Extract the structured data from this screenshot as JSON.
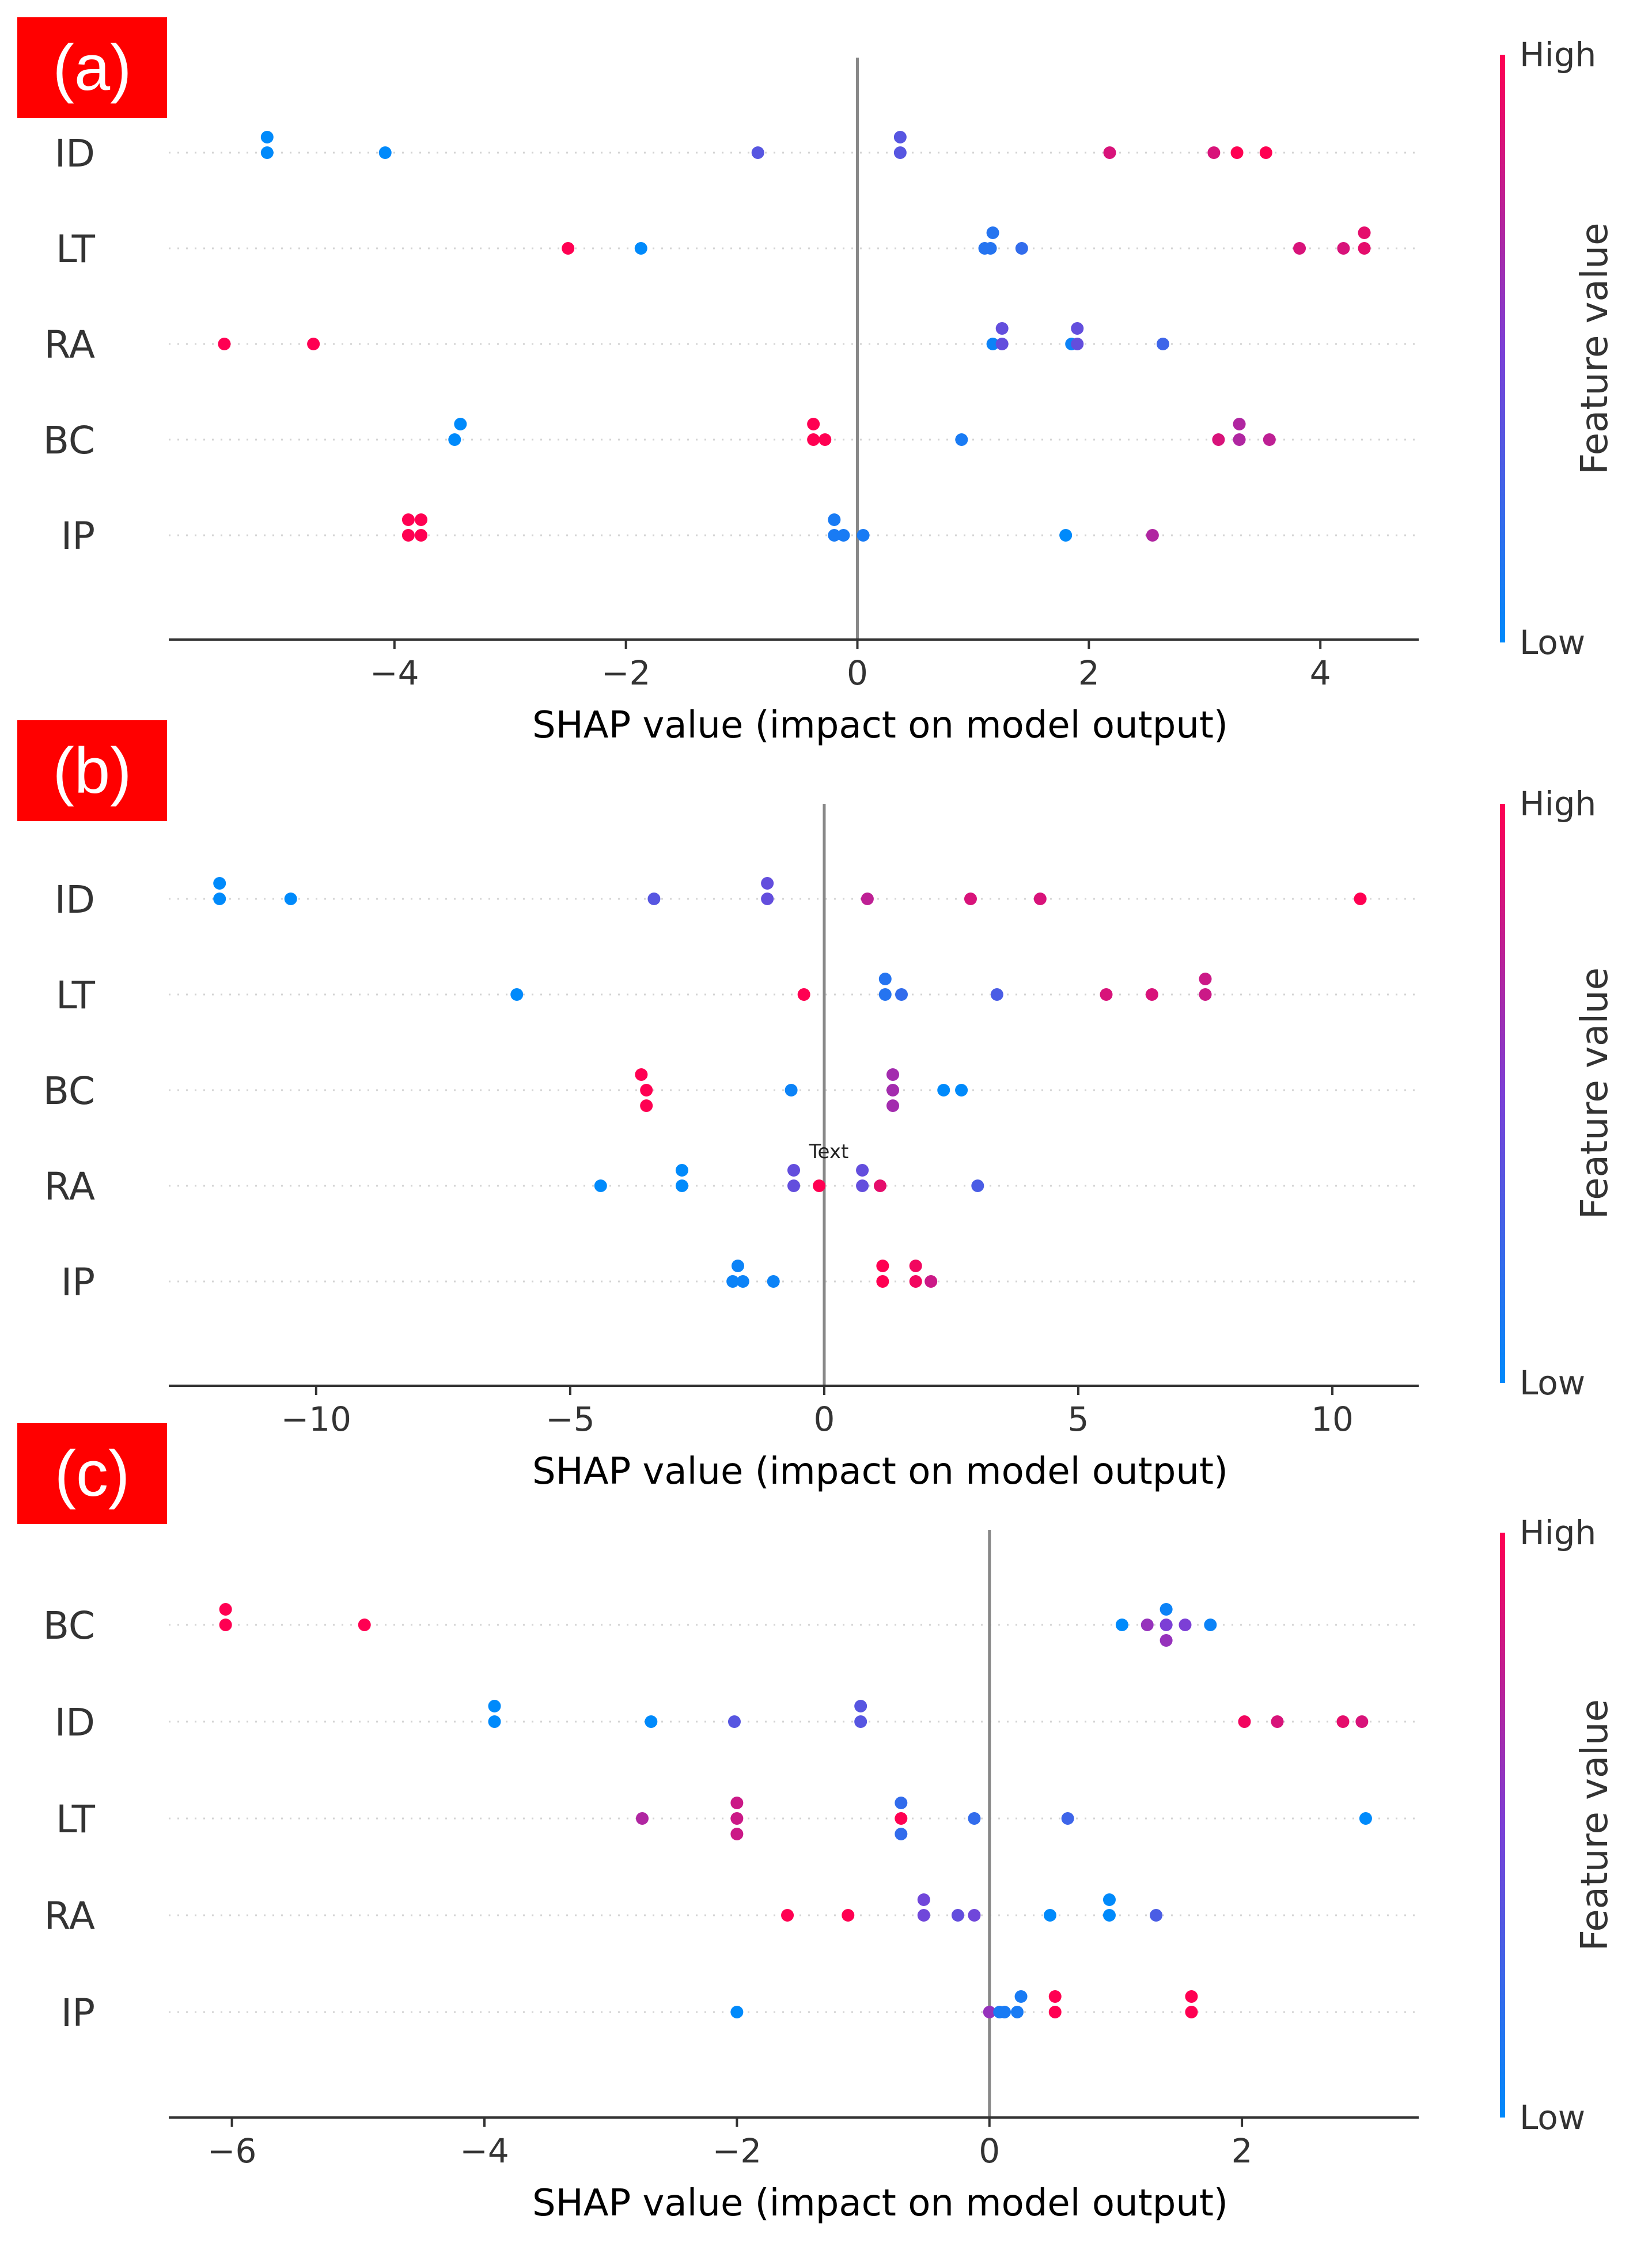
{
  "colors": {
    "low": "#008afb",
    "mid": "#7c3fd6",
    "high": "#ff0052",
    "tag_bg": "#ff0000",
    "zero_line": "#888888"
  },
  "colorbar": {
    "high_label": "High",
    "low_label": "Low",
    "title": "Feature value"
  },
  "chart_data": [
    {
      "type": "scatter",
      "panel_label": "(a)",
      "xlabel": "SHAP value (impact on model output)",
      "xlim": [
        -5.95,
        4.85
      ],
      "xticks": [
        -4,
        -2,
        0,
        2,
        4
      ],
      "xtick_labels": [
        "−4",
        "−2",
        "0",
        "2",
        "4"
      ],
      "features": [
        "ID",
        "LT",
        "RA",
        "BC",
        "IP"
      ],
      "points": [
        {
          "feature": "ID",
          "values": [
            [
              -5.1,
              0.0
            ],
            [
              -5.1,
              0.0
            ],
            [
              -4.08,
              0.0
            ],
            [
              -0.86,
              0.35
            ],
            [
              0.37,
              0.35
            ],
            [
              0.37,
              0.35
            ],
            [
              2.18,
              0.85
            ],
            [
              3.08,
              0.85
            ],
            [
              3.28,
              1.0
            ],
            [
              3.53,
              1.0
            ]
          ]
        },
        {
          "feature": "LT",
          "values": [
            [
              -2.5,
              1.0
            ],
            [
              -1.87,
              0.0
            ],
            [
              1.15,
              0.15
            ],
            [
              1.1,
              0.15
            ],
            [
              1.17,
              0.15
            ],
            [
              1.42,
              0.2
            ],
            [
              3.82,
              0.85
            ],
            [
              4.2,
              0.85
            ],
            [
              4.38,
              0.9
            ],
            [
              4.38,
              0.9
            ]
          ]
        },
        {
          "feature": "RA",
          "values": [
            [
              -5.47,
              1.0
            ],
            [
              -4.7,
              1.0
            ],
            [
              1.17,
              0.05
            ],
            [
              1.25,
              0.4
            ],
            [
              1.25,
              0.4
            ],
            [
              1.85,
              0.05
            ],
            [
              1.9,
              0.4
            ],
            [
              1.9,
              0.4
            ],
            [
              2.64,
              0.25
            ]
          ]
        },
        {
          "feature": "BC",
          "values": [
            [
              -3.48,
              0.0
            ],
            [
              -3.43,
              0.0
            ],
            [
              -0.38,
              1.0
            ],
            [
              -0.38,
              1.0
            ],
            [
              -0.28,
              1.0
            ],
            [
              0.9,
              0.1
            ],
            [
              3.12,
              0.85
            ],
            [
              3.3,
              0.7
            ],
            [
              3.3,
              0.7
            ],
            [
              3.56,
              0.75
            ]
          ]
        },
        {
          "feature": "IP",
          "values": [
            [
              -3.88,
              1.0
            ],
            [
              -3.77,
              1.0
            ],
            [
              -3.88,
              1.0
            ],
            [
              -3.77,
              1.0
            ],
            [
              -0.2,
              0.1
            ],
            [
              -0.2,
              0.1
            ],
            [
              -0.12,
              0.1
            ],
            [
              0.05,
              0.1
            ],
            [
              1.8,
              0.0
            ],
            [
              2.55,
              0.7
            ]
          ]
        }
      ]
    },
    {
      "type": "scatter",
      "panel_label": "(b)",
      "xlabel": "SHAP value (impact on model output)",
      "xlim": [
        -12.9,
        11.7
      ],
      "xticks": [
        -10,
        -5,
        0,
        5,
        10
      ],
      "xtick_labels": [
        "−10",
        "−5",
        "0",
        "5",
        "10"
      ],
      "annotation": "Text",
      "features": [
        "ID",
        "LT",
        "BC",
        "RA",
        "IP"
      ],
      "points": [
        {
          "feature": "ID",
          "values": [
            [
              -11.9,
              0.0
            ],
            [
              -11.9,
              0.0
            ],
            [
              -10.5,
              0.0
            ],
            [
              -3.35,
              0.35
            ],
            [
              -1.12,
              0.4
            ],
            [
              -1.12,
              0.4
            ],
            [
              0.85,
              0.75
            ],
            [
              2.88,
              0.85
            ],
            [
              4.25,
              0.85
            ],
            [
              10.55,
              1.0
            ]
          ]
        },
        {
          "feature": "LT",
          "values": [
            [
              -6.05,
              0.0
            ],
            [
              -0.4,
              1.0
            ],
            [
              1.2,
              0.15
            ],
            [
              1.2,
              0.15
            ],
            [
              1.52,
              0.2
            ],
            [
              3.4,
              0.3
            ],
            [
              5.55,
              0.85
            ],
            [
              6.45,
              0.85
            ],
            [
              7.5,
              0.8
            ],
            [
              7.5,
              0.8
            ]
          ]
        },
        {
          "feature": "BC",
          "values": [
            [
              -3.5,
              1.0
            ],
            [
              -3.6,
              1.0
            ],
            [
              -3.5,
              1.0
            ],
            [
              -0.65,
              0.05
            ],
            [
              1.35,
              0.65
            ],
            [
              1.35,
              0.65
            ],
            [
              1.35,
              0.65
            ],
            [
              2.35,
              0.0
            ],
            [
              2.7,
              0.0
            ]
          ]
        },
        {
          "feature": "RA",
          "values": [
            [
              -4.4,
              0.0
            ],
            [
              -2.8,
              0.0
            ],
            [
              -2.8,
              0.0
            ],
            [
              -0.6,
              0.4
            ],
            [
              -0.6,
              0.4
            ],
            [
              -0.1,
              1.0
            ],
            [
              0.75,
              0.4
            ],
            [
              0.75,
              0.4
            ],
            [
              1.1,
              0.9
            ],
            [
              3.02,
              0.3
            ]
          ]
        },
        {
          "feature": "IP",
          "values": [
            [
              -1.8,
              0.05
            ],
            [
              -1.7,
              0.05
            ],
            [
              -1.6,
              0.05
            ],
            [
              -1.0,
              0.05
            ],
            [
              1.15,
              1.0
            ],
            [
              1.15,
              1.0
            ],
            [
              1.8,
              0.95
            ],
            [
              1.8,
              0.95
            ],
            [
              2.1,
              0.8
            ]
          ]
        }
      ]
    },
    {
      "type": "scatter",
      "panel_label": "(c)",
      "xlabel": "SHAP value (impact on model output)",
      "xlim": [
        -6.5,
        3.4
      ],
      "xticks": [
        -6,
        -4,
        -2,
        0,
        2
      ],
      "xtick_labels": [
        "−6",
        "−4",
        "−2",
        "0",
        "2"
      ],
      "features": [
        "BC",
        "ID",
        "LT",
        "RA",
        "IP"
      ],
      "points": [
        {
          "feature": "BC",
          "values": [
            [
              -6.05,
              1.0
            ],
            [
              -6.05,
              1.0
            ],
            [
              -4.95,
              1.0
            ],
            [
              1.05,
              0.0
            ],
            [
              1.25,
              0.6
            ],
            [
              1.4,
              0.5
            ],
            [
              1.4,
              0.05
            ],
            [
              1.4,
              0.6
            ],
            [
              1.55,
              0.5
            ],
            [
              1.75,
              0.05
            ]
          ]
        },
        {
          "feature": "ID",
          "values": [
            [
              -3.92,
              0.0
            ],
            [
              -3.92,
              0.0
            ],
            [
              -2.68,
              0.0
            ],
            [
              -2.02,
              0.35
            ],
            [
              -1.02,
              0.35
            ],
            [
              -1.02,
              0.35
            ],
            [
              2.02,
              0.95
            ],
            [
              2.28,
              0.85
            ],
            [
              2.8,
              0.9
            ],
            [
              2.95,
              0.85
            ]
          ]
        },
        {
          "feature": "LT",
          "values": [
            [
              -2.75,
              0.7
            ],
            [
              -2.0,
              0.8
            ],
            [
              -2.0,
              0.8
            ],
            [
              -2.0,
              0.8
            ],
            [
              -0.7,
              1.0
            ],
            [
              -0.7,
              0.2
            ],
            [
              -0.7,
              0.2
            ],
            [
              -0.12,
              0.2
            ],
            [
              0.62,
              0.25
            ],
            [
              2.98,
              0.0
            ]
          ]
        },
        {
          "feature": "RA",
          "values": [
            [
              -1.6,
              1.0
            ],
            [
              -1.12,
              1.0
            ],
            [
              -0.52,
              0.45
            ],
            [
              -0.52,
              0.45
            ],
            [
              -0.25,
              0.4
            ],
            [
              -0.12,
              0.45
            ],
            [
              0.48,
              0.0
            ],
            [
              0.95,
              0.0
            ],
            [
              0.95,
              0.0
            ],
            [
              1.32,
              0.3
            ]
          ]
        },
        {
          "feature": "IP",
          "values": [
            [
              -2.0,
              0.0
            ],
            [
              0.0,
              0.6
            ],
            [
              0.08,
              0.1
            ],
            [
              0.12,
              0.1
            ],
            [
              0.22,
              0.1
            ],
            [
              0.25,
              0.1
            ],
            [
              0.52,
              1.0
            ],
            [
              0.52,
              1.0
            ],
            [
              1.6,
              1.0
            ],
            [
              1.6,
              1.0
            ]
          ]
        }
      ]
    }
  ]
}
